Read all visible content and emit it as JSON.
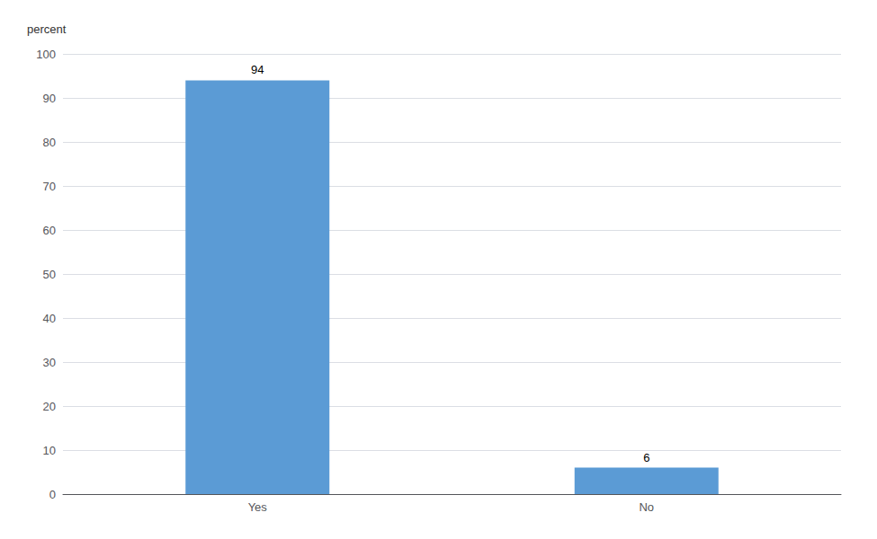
{
  "chart_data": {
    "type": "bar",
    "ylabel": "percent",
    "categories": [
      "Yes",
      "No"
    ],
    "values": [
      94,
      6
    ],
    "color": "#5B9BD5",
    "ylim": [
      0,
      100
    ],
    "yticks": [
      0,
      10,
      20,
      30,
      40,
      50,
      60,
      70,
      80,
      90,
      100
    ],
    "grid": true,
    "data_labels": true
  }
}
